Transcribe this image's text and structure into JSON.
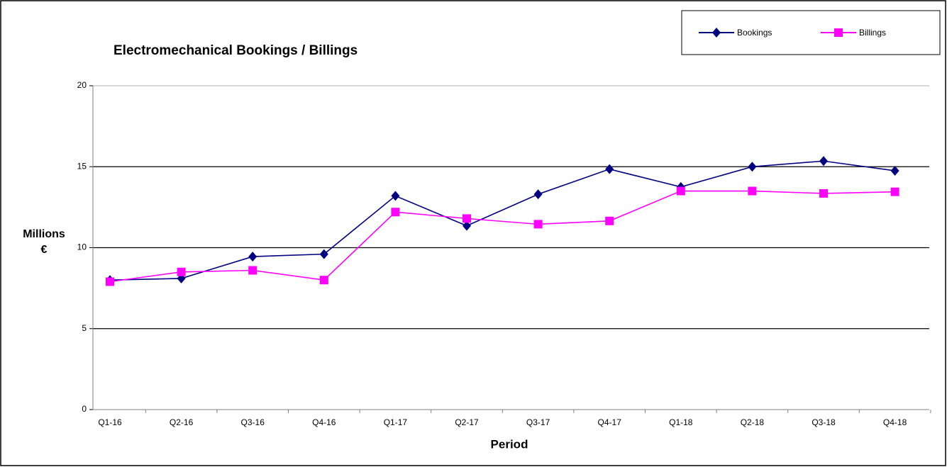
{
  "chart_data": {
    "type": "line",
    "title": "Electromechanical Bookings / Billings",
    "x_label": "Period",
    "y_label": [
      "Millions",
      "€"
    ],
    "categories": [
      "Q1-16",
      "Q2-16",
      "Q3-16",
      "Q4-16",
      "Q1-17",
      "Q2-17",
      "Q3-17",
      "Q4-17",
      "Q1-18",
      "Q2-18",
      "Q3-18",
      "Q4-18"
    ],
    "series": [
      {
        "name": "Bookings",
        "color": "#000080",
        "marker": "diamond",
        "values": [
          8.0,
          8.1,
          9.45,
          9.6,
          13.2,
          11.35,
          13.3,
          14.85,
          13.75,
          15.0,
          15.35,
          14.75
        ]
      },
      {
        "name": "Billings",
        "color": "#ff00ff",
        "marker": "square",
        "values": [
          7.9,
          8.5,
          8.6,
          8.0,
          12.2,
          11.8,
          11.45,
          11.65,
          13.5,
          13.5,
          13.35,
          13.45
        ]
      }
    ],
    "ylim": [
      0,
      20
    ],
    "yticks": [
      0,
      5,
      10,
      15,
      20
    ],
    "grid": true,
    "legend": "top-right"
  }
}
